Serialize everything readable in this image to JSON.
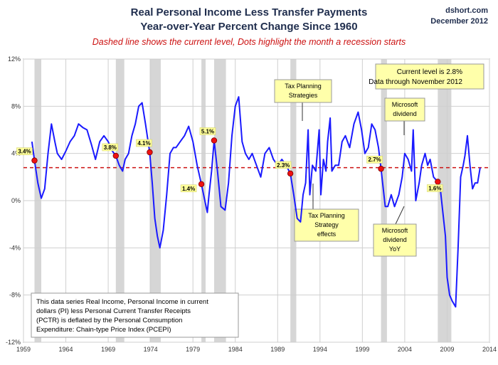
{
  "chart_data": {
    "type": "line",
    "title_line1": "Real Personal Income Less Transfer Payments",
    "title_line2": "Year-over-Year Percent Change Since 1960",
    "subtitle": "Dashed line shows the current level, Dots highlight the month a recession starts",
    "source": "dshort.com",
    "date": "December 2012",
    "ylim": [
      -12,
      12
    ],
    "yticks": [
      -12,
      -8,
      -4,
      0,
      4,
      8,
      12
    ],
    "ytick_labels": [
      "-12%",
      "-8%",
      "-4%",
      "0%",
      "4%",
      "8%",
      "12%"
    ],
    "xlim": [
      1959,
      2014
    ],
    "xticks": [
      1959,
      1964,
      1969,
      1974,
      1979,
      1984,
      1989,
      1994,
      1999,
      2004,
      2009,
      2014
    ],
    "xtick_labels": [
      "1959",
      "1964",
      "1969",
      "1974",
      "1979",
      "1984",
      "1989",
      "1994",
      "1999",
      "2004",
      "2009",
      "2014"
    ],
    "grid": true,
    "current_level": 2.8,
    "current_box": [
      "Current level is 2.8%",
      "Data through November 2012"
    ],
    "recessions": [
      [
        1960.3,
        1961.1
      ],
      [
        1969.9,
        1970.9
      ],
      [
        1973.9,
        1975.2
      ],
      [
        1980.0,
        1980.5
      ],
      [
        1981.5,
        1982.9
      ],
      [
        1990.5,
        1991.2
      ],
      [
        2001.2,
        2001.9
      ],
      [
        2007.9,
        2009.5
      ]
    ],
    "recession_dots": [
      {
        "x": 1960.3,
        "y": 3.4,
        "label": "3.4%"
      },
      {
        "x": 1969.9,
        "y": 3.8,
        "label": "3.8%"
      },
      {
        "x": 1973.9,
        "y": 4.1,
        "label": "4.1%"
      },
      {
        "x": 1980.0,
        "y": 1.4,
        "label": "1.4%"
      },
      {
        "x": 1981.5,
        "y": 5.1,
        "label": "5.1%"
      },
      {
        "x": 1990.5,
        "y": 2.3,
        "label": "2.3%"
      },
      {
        "x": 2001.2,
        "y": 2.7,
        "label": "2.7%"
      },
      {
        "x": 2007.9,
        "y": 1.6,
        "label": "1.6%"
      }
    ],
    "series": [
      {
        "color": "#1a1aff",
        "points": [
          [
            1960.0,
            5.0
          ],
          [
            1960.3,
            3.4
          ],
          [
            1960.7,
            1.5
          ],
          [
            1961.1,
            0.2
          ],
          [
            1961.5,
            1.0
          ],
          [
            1961.9,
            4.0
          ],
          [
            1962.3,
            6.5
          ],
          [
            1962.7,
            5.0
          ],
          [
            1963.0,
            4.0
          ],
          [
            1963.5,
            3.5
          ],
          [
            1964.0,
            4.2
          ],
          [
            1964.5,
            5.0
          ],
          [
            1965.0,
            5.5
          ],
          [
            1965.5,
            6.5
          ],
          [
            1966.0,
            6.2
          ],
          [
            1966.5,
            6.0
          ],
          [
            1967.0,
            4.8
          ],
          [
            1967.5,
            3.5
          ],
          [
            1968.0,
            5.0
          ],
          [
            1968.5,
            5.5
          ],
          [
            1969.0,
            5.0
          ],
          [
            1969.5,
            4.2
          ],
          [
            1969.9,
            3.8
          ],
          [
            1970.3,
            3.0
          ],
          [
            1970.7,
            2.5
          ],
          [
            1971.0,
            3.5
          ],
          [
            1971.4,
            4.0
          ],
          [
            1971.8,
            5.5
          ],
          [
            1972.2,
            6.5
          ],
          [
            1972.6,
            8.0
          ],
          [
            1973.0,
            8.3
          ],
          [
            1973.4,
            6.5
          ],
          [
            1973.9,
            4.1
          ],
          [
            1974.2,
            1.5
          ],
          [
            1974.5,
            -1.5
          ],
          [
            1974.8,
            -3.0
          ],
          [
            1975.1,
            -4.0
          ],
          [
            1975.5,
            -2.5
          ],
          [
            1975.9,
            0.5
          ],
          [
            1976.3,
            4.0
          ],
          [
            1976.7,
            4.5
          ],
          [
            1977.0,
            4.5
          ],
          [
            1977.5,
            5.0
          ],
          [
            1978.0,
            5.5
          ],
          [
            1978.5,
            6.3
          ],
          [
            1979.0,
            5.0
          ],
          [
            1979.5,
            3.0
          ],
          [
            1980.0,
            1.4
          ],
          [
            1980.4,
            0.0
          ],
          [
            1980.7,
            -1.0
          ],
          [
            1980.9,
            0.5
          ],
          [
            1981.2,
            2.5
          ],
          [
            1981.5,
            5.1
          ],
          [
            1981.9,
            2.5
          ],
          [
            1982.3,
            -0.5
          ],
          [
            1982.8,
            -0.8
          ],
          [
            1983.2,
            1.5
          ],
          [
            1983.6,
            5.5
          ],
          [
            1984.0,
            8.0
          ],
          [
            1984.4,
            8.8
          ],
          [
            1984.8,
            5.0
          ],
          [
            1985.2,
            4.0
          ],
          [
            1985.6,
            3.5
          ],
          [
            1986.0,
            4.0
          ],
          [
            1986.5,
            3.0
          ],
          [
            1987.0,
            2.0
          ],
          [
            1987.5,
            4.0
          ],
          [
            1988.0,
            4.5
          ],
          [
            1988.5,
            3.5
          ],
          [
            1989.0,
            3.0
          ],
          [
            1989.5,
            3.5
          ],
          [
            1990.0,
            3.0
          ],
          [
            1990.5,
            2.3
          ],
          [
            1990.9,
            0.5
          ],
          [
            1991.3,
            -1.5
          ],
          [
            1991.7,
            -1.8
          ],
          [
            1992.0,
            0.5
          ],
          [
            1992.3,
            1.5
          ],
          [
            1992.6,
            6.0
          ],
          [
            1992.8,
            0.5
          ],
          [
            1993.1,
            3.0
          ],
          [
            1993.5,
            2.5
          ],
          [
            1993.9,
            6.0
          ],
          [
            1994.1,
            0.5
          ],
          [
            1994.4,
            3.5
          ],
          [
            1994.7,
            2.5
          ],
          [
            1994.9,
            5.0
          ],
          [
            1995.2,
            7.0
          ],
          [
            1995.4,
            2.5
          ],
          [
            1995.8,
            3.0
          ],
          [
            1996.2,
            3.0
          ],
          [
            1996.6,
            5.0
          ],
          [
            1997.0,
            5.5
          ],
          [
            1997.5,
            4.5
          ],
          [
            1998.0,
            6.5
          ],
          [
            1998.5,
            7.5
          ],
          [
            1998.9,
            6.0
          ],
          [
            1999.3,
            4.0
          ],
          [
            1999.7,
            4.5
          ],
          [
            2000.1,
            6.5
          ],
          [
            2000.5,
            6.0
          ],
          [
            2000.9,
            4.5
          ],
          [
            2001.2,
            2.7
          ],
          [
            2001.7,
            -0.5
          ],
          [
            2002.0,
            -0.5
          ],
          [
            2002.4,
            0.5
          ],
          [
            2002.8,
            -0.5
          ],
          [
            2003.3,
            0.5
          ],
          [
            2003.7,
            2.0
          ],
          [
            2004.0,
            4.0
          ],
          [
            2004.4,
            3.5
          ],
          [
            2004.8,
            2.5
          ],
          [
            2005.0,
            6.0
          ],
          [
            2005.3,
            0.0
          ],
          [
            2005.7,
            1.5
          ],
          [
            2006.0,
            3.0
          ],
          [
            2006.4,
            4.0
          ],
          [
            2006.7,
            3.0
          ],
          [
            2007.0,
            3.5
          ],
          [
            2007.4,
            2.0
          ],
          [
            2007.9,
            1.6
          ],
          [
            2008.2,
            1.0
          ],
          [
            2008.5,
            -1.0
          ],
          [
            2008.8,
            -3.0
          ],
          [
            2009.0,
            -6.5
          ],
          [
            2009.3,
            -8.0
          ],
          [
            2009.6,
            -8.5
          ],
          [
            2010.0,
            -9.0
          ],
          [
            2010.3,
            -4.0
          ],
          [
            2010.6,
            2.0
          ],
          [
            2010.9,
            3.0
          ],
          [
            2011.1,
            3.8
          ],
          [
            2011.4,
            5.5
          ],
          [
            2011.7,
            3.0
          ],
          [
            2012.0,
            1.0
          ],
          [
            2012.3,
            1.5
          ],
          [
            2012.6,
            1.5
          ],
          [
            2012.9,
            2.8
          ]
        ]
      }
    ],
    "annotations": [
      {
        "id": "tax-top",
        "lines": [
          "Tax Planning",
          "Strategies"
        ]
      },
      {
        "id": "tax-bottom",
        "lines": [
          "Tax Planning",
          "Strategy",
          "effects"
        ]
      },
      {
        "id": "ms-top",
        "lines": [
          "Microsoft",
          "dividend"
        ]
      },
      {
        "id": "ms-bottom",
        "lines": [
          "Microsoft",
          "dividend",
          "YoY"
        ]
      }
    ],
    "note": [
      "This data series  Real Income, Personal Income in current",
      "dollars  (PI) less Personal Current Transfer Receipts",
      "(PCTR) is deflated by the Personal Consumption",
      "Expenditure: Chain-type Price Index (PCEPI)"
    ]
  }
}
